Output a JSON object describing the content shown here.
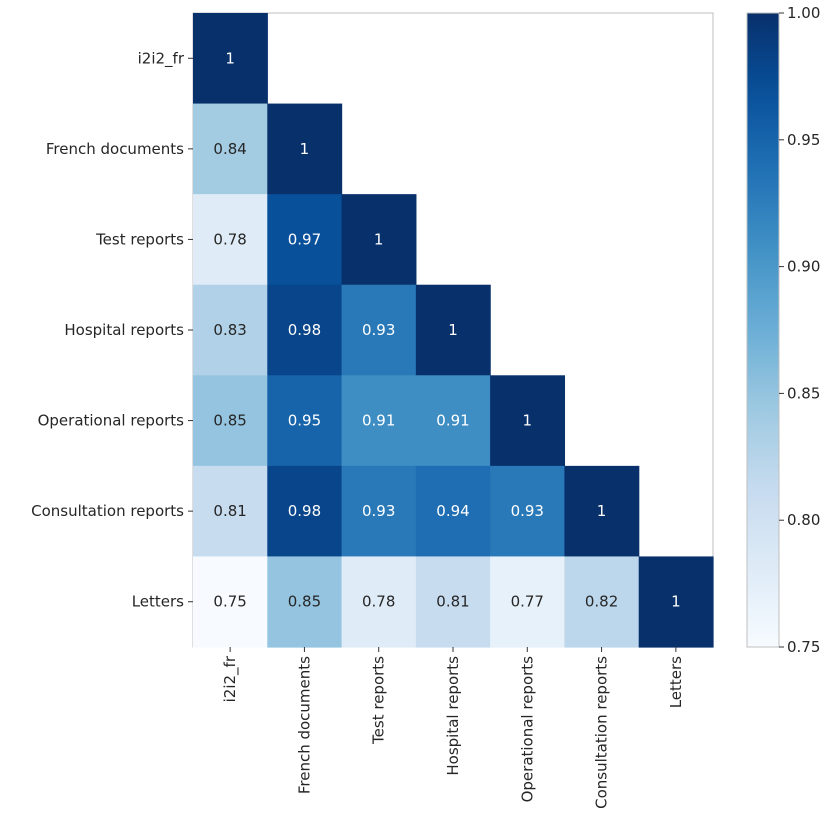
{
  "chart_data": {
    "type": "heatmap",
    "title": "",
    "xlabel": "",
    "ylabel": "",
    "row_labels": [
      "i2i2_fr",
      "French documents",
      "Test reports",
      "Hospital reports",
      "Operational reports",
      "Consultation reports",
      "Letters"
    ],
    "col_labels": [
      "i2i2_fr",
      "French documents",
      "Test reports",
      "Hospital reports",
      "Operational reports",
      "Consultation reports",
      "Letters"
    ],
    "cells": [
      [
        {
          "value": 1,
          "label": "1"
        },
        null,
        null,
        null,
        null,
        null,
        null
      ],
      [
        {
          "value": 0.84,
          "label": "0.84"
        },
        {
          "value": 1,
          "label": "1"
        },
        null,
        null,
        null,
        null,
        null
      ],
      [
        {
          "value": 0.78,
          "label": "0.78"
        },
        {
          "value": 0.97,
          "label": "0.97"
        },
        {
          "value": 1,
          "label": "1"
        },
        null,
        null,
        null,
        null
      ],
      [
        {
          "value": 0.83,
          "label": "0.83"
        },
        {
          "value": 0.98,
          "label": "0.98"
        },
        {
          "value": 0.93,
          "label": "0.93"
        },
        {
          "value": 1,
          "label": "1"
        },
        null,
        null,
        null
      ],
      [
        {
          "value": 0.85,
          "label": "0.85"
        },
        {
          "value": 0.95,
          "label": "0.95"
        },
        {
          "value": 0.91,
          "label": "0.91"
        },
        {
          "value": 0.91,
          "label": "0.91"
        },
        {
          "value": 1,
          "label": "1"
        },
        null,
        null
      ],
      [
        {
          "value": 0.81,
          "label": "0.81"
        },
        {
          "value": 0.98,
          "label": "0.98"
        },
        {
          "value": 0.93,
          "label": "0.93"
        },
        {
          "value": 0.94,
          "label": "0.94"
        },
        {
          "value": 0.93,
          "label": "0.93"
        },
        {
          "value": 1,
          "label": "1"
        },
        null
      ],
      [
        {
          "value": 0.75,
          "label": "0.75"
        },
        {
          "value": 0.85,
          "label": "0.85"
        },
        {
          "value": 0.78,
          "label": "0.78"
        },
        {
          "value": 0.81,
          "label": "0.81"
        },
        {
          "value": 0.77,
          "label": "0.77"
        },
        {
          "value": 0.82,
          "label": "0.82"
        },
        {
          "value": 1,
          "label": "1"
        }
      ]
    ],
    "colorbar": {
      "range": [
        0.75,
        1.0
      ],
      "ticks": [
        0.75,
        0.8,
        0.85,
        0.9,
        0.95,
        1.0
      ],
      "tick_labels": [
        "0.75",
        "0.80",
        "0.85",
        "0.90",
        "0.95",
        "1.00"
      ],
      "colormap": "Blues"
    },
    "mask": "upper triangle hidden",
    "grid": false
  }
}
